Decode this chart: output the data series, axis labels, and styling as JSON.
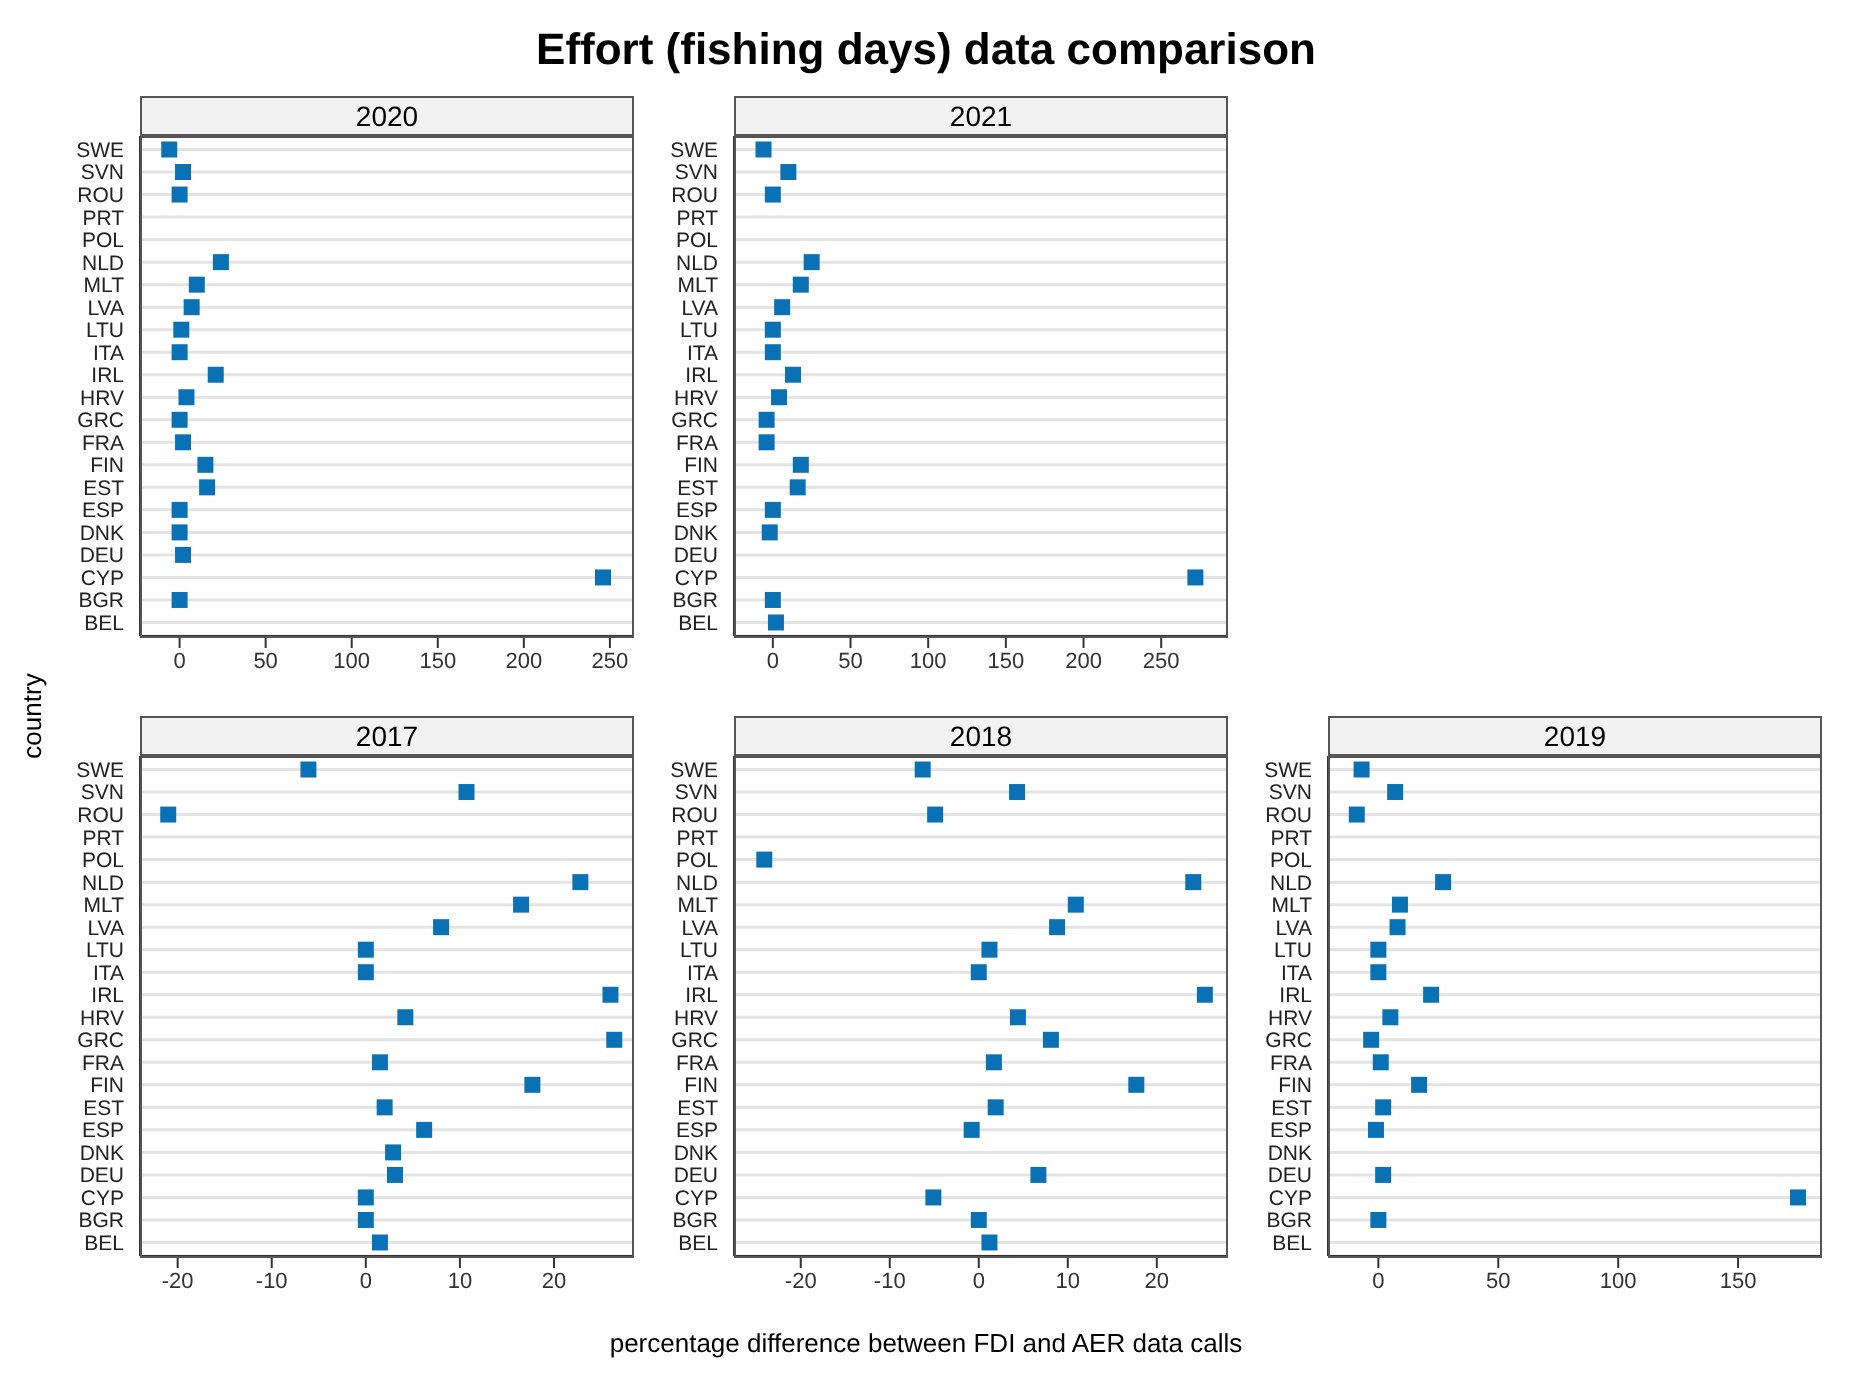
{
  "chart_data": [
    {
      "type": "scatter",
      "orientation": "horizontal",
      "title": "2020",
      "annotations": [
        "Effort (fishing days) data comparison"
      ],
      "ylabel": "country",
      "categories": [
        "SWE",
        "SVN",
        "ROU",
        "PRT",
        "POL",
        "NLD",
        "MLT",
        "LVA",
        "LTU",
        "ITA",
        "IRL",
        "HRV",
        "GRC",
        "FRA",
        "FIN",
        "EST",
        "ESP",
        "DNK",
        "DEU",
        "CYP",
        "BGR",
        "BEL"
      ],
      "values": [
        -6,
        2,
        0,
        null,
        null,
        24,
        10,
        7,
        1,
        0,
        21,
        4,
        0,
        2,
        15,
        16,
        0,
        0,
        2,
        246,
        0,
        null
      ],
      "color": "#0a72b4",
      "marker": "square",
      "grid": "y",
      "xlim": [
        -23,
        264
      ],
      "xticks": [
        0,
        50,
        100,
        150,
        200,
        250
      ]
    },
    {
      "type": "scatter",
      "orientation": "horizontal",
      "title": "2021",
      "categories": [
        "SWE",
        "SVN",
        "ROU",
        "PRT",
        "POL",
        "NLD",
        "MLT",
        "LVA",
        "LTU",
        "ITA",
        "IRL",
        "HRV",
        "GRC",
        "FRA",
        "FIN",
        "EST",
        "ESP",
        "DNK",
        "DEU",
        "CYP",
        "BGR",
        "BEL"
      ],
      "values": [
        -6,
        10,
        0,
        null,
        null,
        25,
        18,
        6,
        0,
        0,
        13,
        4,
        -4,
        -4,
        18,
        16,
        0,
        -2,
        null,
        272,
        0,
        2
      ],
      "color": "#0a72b4",
      "marker": "square",
      "grid": "y",
      "xlim": [
        -25,
        293
      ],
      "xticks": [
        0,
        50,
        100,
        150,
        200,
        250
      ]
    },
    {
      "type": "scatter",
      "orientation": "horizontal",
      "title": "2017",
      "categories": [
        "SWE",
        "SVN",
        "ROU",
        "PRT",
        "POL",
        "NLD",
        "MLT",
        "LVA",
        "LTU",
        "ITA",
        "IRL",
        "HRV",
        "GRC",
        "FRA",
        "FIN",
        "EST",
        "ESP",
        "DNK",
        "DEU",
        "CYP",
        "BGR",
        "BEL"
      ],
      "values": [
        -6.1,
        10.7,
        -21,
        null,
        null,
        22.8,
        16.5,
        8,
        0,
        0,
        26,
        4.2,
        26.4,
        1.5,
        17.7,
        2,
        6.2,
        2.9,
        3.1,
        0,
        0,
        1.5
      ],
      "color": "#0a72b4",
      "marker": "square",
      "grid": "y",
      "xlim": [
        -24,
        28.5
      ],
      "xticks": [
        -20,
        -10,
        0,
        10,
        20
      ]
    },
    {
      "type": "scatter",
      "orientation": "horizontal",
      "title": "2018",
      "xlabel": "percentage difference between FDI and AER data calls",
      "categories": [
        "SWE",
        "SVN",
        "ROU",
        "PRT",
        "POL",
        "NLD",
        "MLT",
        "LVA",
        "LTU",
        "ITA",
        "IRL",
        "HRV",
        "GRC",
        "FRA",
        "FIN",
        "EST",
        "ESP",
        "DNK",
        "DEU",
        "CYP",
        "BGR",
        "BEL"
      ],
      "values": [
        -6.3,
        4.3,
        -4.9,
        null,
        -24.1,
        24.1,
        10.9,
        8.8,
        1.2,
        0,
        25.4,
        4.4,
        8.1,
        1.7,
        17.7,
        1.9,
        -0.8,
        null,
        6.7,
        -5.1,
        0,
        1.2
      ],
      "color": "#0a72b4",
      "marker": "square",
      "grid": "y",
      "xlim": [
        -27.5,
        28
      ],
      "xticks": [
        -20,
        -10,
        0,
        10,
        20
      ]
    },
    {
      "type": "scatter",
      "orientation": "horizontal",
      "title": "2019",
      "categories": [
        "SWE",
        "SVN",
        "ROU",
        "PRT",
        "POL",
        "NLD",
        "MLT",
        "LVA",
        "LTU",
        "ITA",
        "IRL",
        "HRV",
        "GRC",
        "FRA",
        "FIN",
        "EST",
        "ESP",
        "DNK",
        "DEU",
        "CYP",
        "BGR",
        "BEL"
      ],
      "values": [
        -7,
        7,
        -9,
        null,
        null,
        27,
        9,
        8,
        0,
        0,
        22,
        5,
        -3,
        1,
        17,
        2,
        -1,
        null,
        2,
        175,
        0,
        null
      ],
      "color": "#0a72b4",
      "marker": "square",
      "grid": "y",
      "xlim": [
        -21,
        185
      ],
      "xticks": [
        0,
        50,
        100,
        150
      ]
    }
  ]
}
